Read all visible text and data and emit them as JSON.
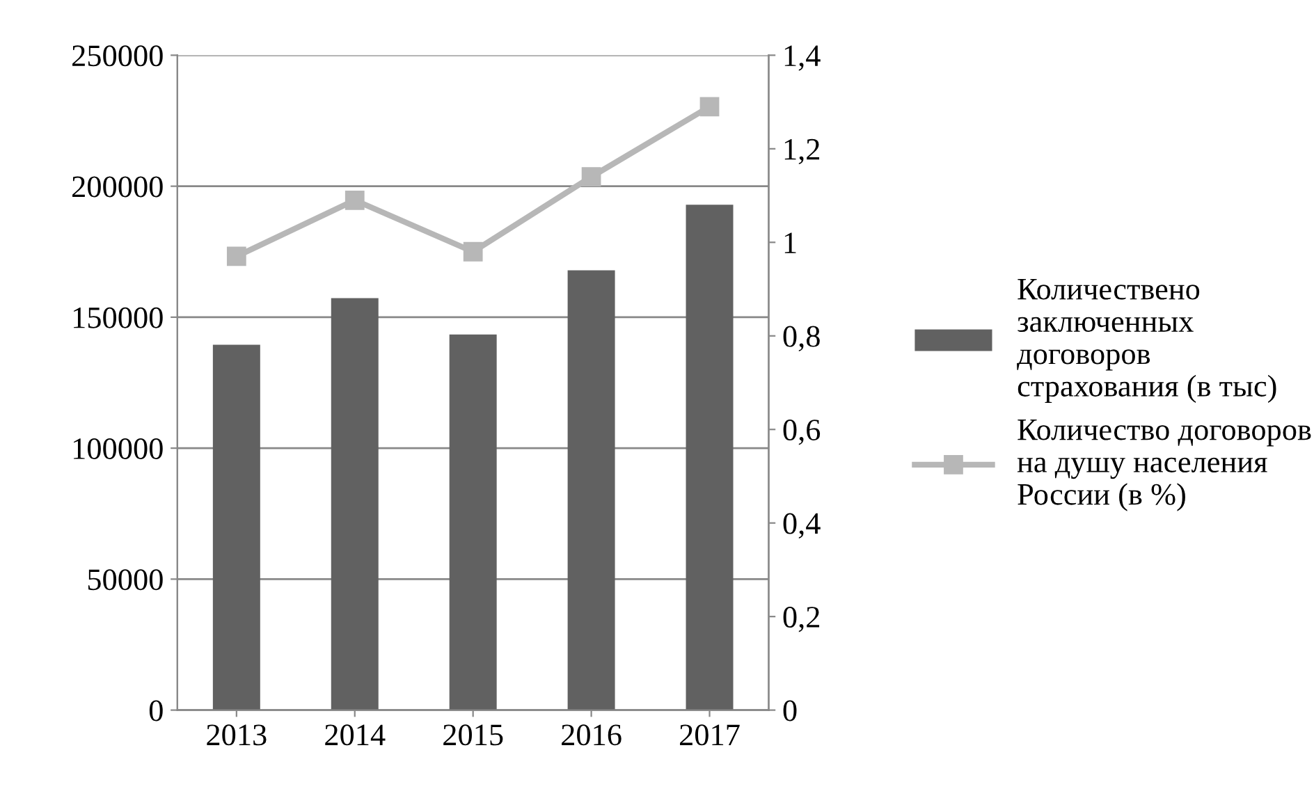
{
  "chart_data": {
    "type": "bar",
    "categories": [
      "2013",
      "2014",
      "2015",
      "2016",
      "2017"
    ],
    "series": [
      {
        "name": "Количествено заключенных договоров страхования (в тыс)",
        "color": "#616161",
        "values": [
          139500,
          157300,
          143400,
          167900,
          192900
        ]
      },
      {
        "name": "Количество договоров на душу населения России (в %)",
        "color": "#b7b7b7",
        "type": "line",
        "axis": "y2",
        "marker": "square",
        "values": [
          0.97,
          1.09,
          0.98,
          1.14,
          1.29
        ]
      }
    ],
    "ylim": [
      0,
      250000
    ],
    "yticks": [
      0,
      50000,
      100000,
      150000,
      200000,
      250000
    ],
    "y2lim": [
      0,
      1.4
    ],
    "y2ticks": [
      {
        "value": 0,
        "label": "0"
      },
      {
        "value": 0.2,
        "label": "0,2"
      },
      {
        "value": 0.4,
        "label": "0,4"
      },
      {
        "value": 0.6,
        "label": "0,6"
      },
      {
        "value": 0.8,
        "label": "0,8"
      },
      {
        "value": 1,
        "label": "1"
      },
      {
        "value": 1.2,
        "label": "1,2"
      },
      {
        "value": 1.4,
        "label": "1,4"
      }
    ],
    "grid": "y",
    "legend": "right"
  }
}
